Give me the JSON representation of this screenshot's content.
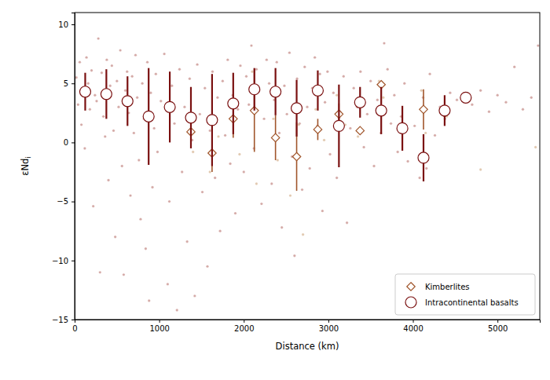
{
  "chart_data": {
    "type": "scatter",
    "x_label": "Distance (km)",
    "y_label": "εNd",
    "y_label_subscript": "i",
    "xlim": [
      0,
      5500
    ],
    "ylim": [
      -15,
      11
    ],
    "xticks": [
      0,
      1000,
      2000,
      3000,
      4000,
      5000
    ],
    "yticks": [
      {
        "value": -15,
        "label": "−15"
      },
      {
        "value": -10,
        "label": "−10"
      },
      {
        "value": -5,
        "label": "−5"
      },
      0,
      5,
      10
    ],
    "legend": "lower right",
    "series": [
      {
        "color": "#b0625c",
        "marker": "dot",
        "x": [
          20,
          40,
          60,
          80,
          100,
          120,
          140,
          160,
          180,
          200,
          220,
          240,
          260,
          280,
          300,
          320,
          340,
          360,
          380,
          400,
          420,
          440,
          460,
          480,
          500,
          520,
          540,
          560,
          580,
          600,
          620,
          640,
          660,
          680,
          700,
          720,
          740,
          760,
          780,
          800,
          820,
          840,
          860,
          880,
          900,
          920,
          940,
          960,
          980,
          1020,
          1060,
          1100,
          1120,
          1150,
          1180,
          1210,
          1240,
          1270,
          1300,
          1330,
          1360,
          1390,
          1420,
          1450,
          1480,
          1510,
          1540,
          1570,
          1600,
          1630,
          1660,
          1690,
          1720,
          1750,
          1780,
          1810,
          1840,
          1870,
          1900,
          1930,
          1960,
          2000,
          2030,
          2060,
          2090,
          2120,
          2150,
          2180,
          2210,
          2240,
          2270,
          2300,
          2330,
          2360,
          2390,
          2420,
          2450,
          2480,
          2510,
          2540,
          2570,
          2600,
          2630,
          2660,
          2690,
          2720,
          2750,
          2780,
          2810,
          2840,
          2870,
          2900,
          2930,
          2960,
          2990,
          3020,
          3060,
          3100,
          3140,
          3180,
          3220,
          3260,
          3300,
          3340,
          3380,
          3420,
          3460,
          3500,
          3540,
          3580,
          3620,
          3660,
          3700,
          3740,
          3780,
          3820,
          3860,
          3900,
          3940,
          4020,
          4080,
          4120,
          4160,
          4200,
          4260,
          4320,
          4380,
          4440,
          4520,
          4600,
          4700,
          4800,
          4900,
          5000,
          5100,
          5200,
          5300,
          5400,
          5480
        ],
        "values": [
          5.5,
          3.2,
          6.8,
          1.5,
          4.5,
          -0.5,
          7.2,
          5.0,
          2.8,
          6.1,
          -5.4,
          4.0,
          3.5,
          8.8,
          -11.0,
          5.9,
          2.2,
          0.5,
          7.0,
          -3.2,
          4.8,
          6.5,
          1.0,
          -8.0,
          5.2,
          3.0,
          7.8,
          -2.0,
          -11.2,
          4.4,
          6.0,
          2.5,
          -4.5,
          5.6,
          0.8,
          7.4,
          3.8,
          -1.5,
          -6.5,
          5.0,
          2.0,
          -9.0,
          6.8,
          -13.4,
          4.2,
          -3.8,
          1.2,
          5.8,
          -0.8,
          3.5,
          7.5,
          -12.0,
          -5.0,
          4.8,
          1.6,
          -14.2,
          6.2,
          -2.5,
          3.0,
          -8.4,
          5.4,
          0.2,
          -13.0,
          6.6,
          2.4,
          -4.2,
          4.6,
          -10.5,
          1.0,
          6.0,
          -3.0,
          3.8,
          -7.5,
          5.2,
          0.6,
          7.0,
          -1.8,
          4.0,
          -6.0,
          2.8,
          6.5,
          -2.5,
          5.6,
          3.2,
          8.2,
          -0.5,
          6.2,
          4.4,
          -5.2,
          2.0,
          7.0,
          5.0,
          -3.5,
          3.6,
          6.8,
          0.8,
          -7.2,
          4.8,
          2.4,
          7.6,
          -1.2,
          -9.6,
          5.4,
          1.6,
          -4.0,
          6.4,
          3.0,
          -2.2,
          4.6,
          7.2,
          1.4,
          5.8,
          -5.8,
          3.4,
          6.0,
          -1.0,
          4.2,
          -3.0,
          2.6,
          5.6,
          -6.8,
          1.2,
          4.6,
          3.0,
          6.0,
          -0.4,
          2.4,
          5.2,
          -2.0,
          3.6,
          0.8,
          8.4,
          6.2,
          1.6,
          4.0,
          -0.8,
          2.2,
          5.0,
          -1.6,
          1.4,
          -3.0,
          3.8,
          -2.2,
          5.8,
          0.6,
          3.0,
          2.0,
          4.2,
          3.6,
          4.0,
          3.2,
          4.4,
          2.6,
          4.0,
          3.4,
          6.4,
          2.8,
          3.8,
          8.2
        ]
      },
      {
        "color": "#c99b6e",
        "marker": "dot",
        "x": [
          1350,
          1400,
          1600,
          1700,
          1850,
          1950,
          2100,
          2150,
          2350,
          2400,
          2550,
          2650,
          2700,
          2850,
          2950,
          3100,
          3200,
          3350,
          3600,
          3650,
          4100,
          4150,
          4400,
          4800,
          5450
        ],
        "values": [
          1.8,
          -0.8,
          -2.5,
          0.5,
          3.5,
          -1.0,
          6.0,
          -3.5,
          2.0,
          -1.5,
          -4.5,
          1.5,
          -7.8,
          2.8,
          0.2,
          4.0,
          1.5,
          0.5,
          5.2,
          3.8,
          4.4,
          0.8,
          2.2,
          -2.3,
          -0.4
        ]
      },
      {
        "name": "Kimberlites",
        "color": "#a0552b",
        "marker": "diamond",
        "x": [
          1375,
          1625,
          1875,
          2125,
          2375,
          2625,
          2875,
          3125,
          3375,
          3625,
          4125,
          4375
        ],
        "values": [
          0.9,
          -0.9,
          2.0,
          2.7,
          0.4,
          -1.2,
          1.1,
          2.4,
          1.0,
          4.9,
          2.8,
          2.5
        ],
        "error": [
          1.1,
          1.6,
          1.6,
          3.5,
          1.9,
          2.9,
          0.9,
          0.9,
          0,
          0.3,
          1.7,
          0.3
        ]
      },
      {
        "name": "Intracontinental basalts",
        "color": "#7a1010",
        "marker": "circle",
        "x": [
          125,
          375,
          625,
          875,
          1125,
          1375,
          1625,
          1875,
          2125,
          2375,
          2625,
          2875,
          3125,
          3375,
          3625,
          3875,
          4125,
          4375,
          4625
        ],
        "values": [
          4.3,
          4.1,
          3.5,
          2.2,
          3.0,
          2.1,
          1.9,
          3.3,
          4.5,
          4.3,
          2.9,
          4.4,
          1.4,
          3.4,
          2.7,
          1.2,
          -1.3,
          2.7,
          3.8
        ],
        "error": [
          1.6,
          2.1,
          2.1,
          4.1,
          3.0,
          2.6,
          3.9,
          2.6,
          1.8,
          2.0,
          2.4,
          1.7,
          3.5,
          1.3,
          2.0,
          1.9,
          2.0,
          1.3,
          0
        ]
      }
    ]
  }
}
